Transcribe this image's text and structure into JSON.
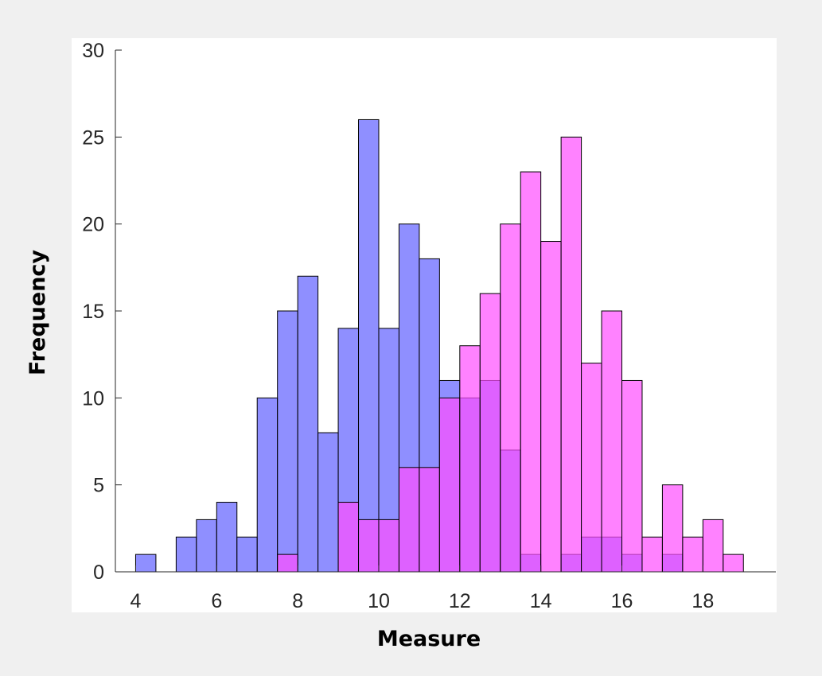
{
  "chart_data": {
    "type": "bar",
    "title": "",
    "xlabel": "Measure",
    "ylabel": "Frequency",
    "xlim": [
      3.5,
      19.8
    ],
    "ylim": [
      0,
      30
    ],
    "xticks": [
      "4",
      "6",
      "8",
      "10",
      "12",
      "14",
      "16",
      "18"
    ],
    "yticks": [
      "0",
      "5",
      "10",
      "15",
      "20",
      "25",
      "30"
    ],
    "grid": false,
    "bin_width": 0.5,
    "series": [
      {
        "color": "#6060ff",
        "bin_starts": [
          4,
          4.5,
          5,
          5.5,
          6,
          6.5,
          7,
          7.5,
          8,
          8.5,
          9,
          9.5,
          10,
          10.5,
          11,
          11.5,
          12,
          12.5,
          13,
          13.5,
          14,
          14.5,
          15,
          15.5,
          16,
          16.5,
          17
        ],
        "values": [
          1,
          0,
          2,
          3,
          4,
          2,
          10,
          15,
          17,
          8,
          14,
          26,
          14,
          20,
          18,
          11,
          10,
          11,
          7,
          1,
          0,
          1,
          2,
          2,
          1,
          0,
          1
        ]
      },
      {
        "color": "#ff4dff",
        "bin_starts": [
          7.5,
          8,
          8.5,
          9,
          9.5,
          10,
          10.5,
          11,
          11.5,
          12,
          12.5,
          13,
          13.5,
          14,
          14.5,
          15,
          15.5,
          16,
          16.5,
          17,
          17.5,
          18,
          18.5
        ],
        "values": [
          1,
          0,
          0,
          4,
          3,
          3,
          6,
          6,
          10,
          13,
          16,
          20,
          23,
          19,
          25,
          12,
          15,
          11,
          2,
          5,
          2,
          3,
          1
        ]
      }
    ]
  }
}
